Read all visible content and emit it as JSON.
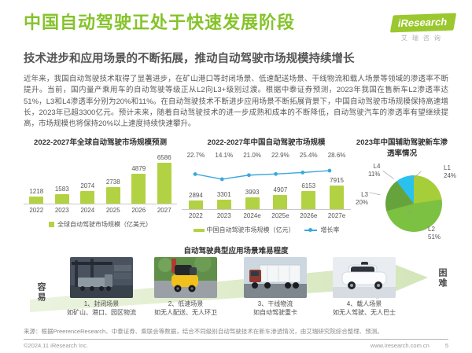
{
  "header": {
    "title": "中国自动驾驶正处于快速发展阶段",
    "subtitle": "技术进步和应用场景的不断拓展，推动自动驾驶市场规模持续增长",
    "logo": {
      "brand": "iResearch",
      "brand_cn": "艾瑞咨询"
    }
  },
  "body_paragraph": "近年来，我国自动驾驶技术取得了显著进步，在矿山港口等封闭场景、低速配送场景、干线物流和载人场景等领域的渗透率不断提升。当前，国内量产乘用车的自动驾驶等级正从L2向L3+级别过渡。根据中泰证券预测，2023年我国在售新车L2渗透率达51%，L3和L4渗透率分别为20%和11%。在自动驾驶技术不断进步应用场景不断拓展背景下，中国自动驾驶市场规模保持高速增长，2023年已超3300亿元。预计未来，随着自动驾驶技术的进一步成熟和成本的不断降低，自动驾驶汽车的渗透率有望继续提高，市场规模也将保持20%以上速度持续快速攀升。",
  "colors": {
    "accent_green": "#85c32a",
    "brand_green": "#9ac82e",
    "bar": "#b3d243",
    "line": "#3aa8da",
    "arrow_light": "#dcead0",
    "arrow_dark": "#cde2ae"
  },
  "chart_data": [
    {
      "type": "bar",
      "title": "2022-2027年全球自动驾驶市场规模预测",
      "categories": [
        "2022",
        "2023",
        "2024",
        "2025",
        "2026",
        "2027"
      ],
      "values": [
        1218,
        1583,
        2074,
        2738,
        4879,
        6586
      ],
      "legend": "全球自动驾驶市场规模（亿美元）",
      "ylabel": "",
      "xlabel": "",
      "grid": false,
      "legend_position": "bottom"
    },
    {
      "type": "bar+line",
      "title": "2022-2027年中国自动驾驶市场规模",
      "categories": [
        "2022",
        "2023",
        "2024e",
        "2025e",
        "2026e",
        "2027e"
      ],
      "series": [
        {
          "name": "中国自动驾驶市场规模（亿元）",
          "type": "bar",
          "values": [
            2894,
            3301,
            3993,
            4907,
            6153,
            7915
          ]
        },
        {
          "name": "增长率",
          "type": "line",
          "values_pct": [
            22.7,
            14.1,
            21.0,
            22.9,
            25.4,
            28.6
          ]
        }
      ],
      "legend_position": "bottom"
    },
    {
      "type": "pie",
      "title": "2023年中国辅助驾驶新车渗透率情况",
      "slices": [
        {
          "label": "L1",
          "value_pct": 24,
          "color": "#a6ce39"
        },
        {
          "label": "L2",
          "value_pct": 51,
          "color": "#7cc142"
        },
        {
          "label": "L3",
          "value_pct": 20,
          "color": "#67a33c"
        },
        {
          "label": "L4",
          "value_pct": 11,
          "color": "#2bc1ef"
        }
      ]
    }
  ],
  "scenarios": {
    "title": "自动驾驶典型应用场景难易程度",
    "easy_label": "容易",
    "hard_label": "困难",
    "items": [
      {
        "name": "1、封闭场景",
        "desc": "如矿山、港口、园区物流"
      },
      {
        "name": "2、低速场景",
        "desc": "如无人配送、无人环卫"
      },
      {
        "name": "3、干线物流",
        "desc": "如自动驾驶重卡"
      },
      {
        "name": "4、载人场景",
        "desc": "如无人驾驶、无人巴士"
      }
    ]
  },
  "source_note": "来源：根据PreerenceResearch、中泰证券、乘联会等数据，结合不同级别自动驾驶技术在新车渗透情况，由艾瑞研究院综合整理、预测。",
  "footer": {
    "copyright": "©2024.11 iResearch Inc.",
    "website": "www.iresearch.com.cn",
    "page_number": "5"
  }
}
